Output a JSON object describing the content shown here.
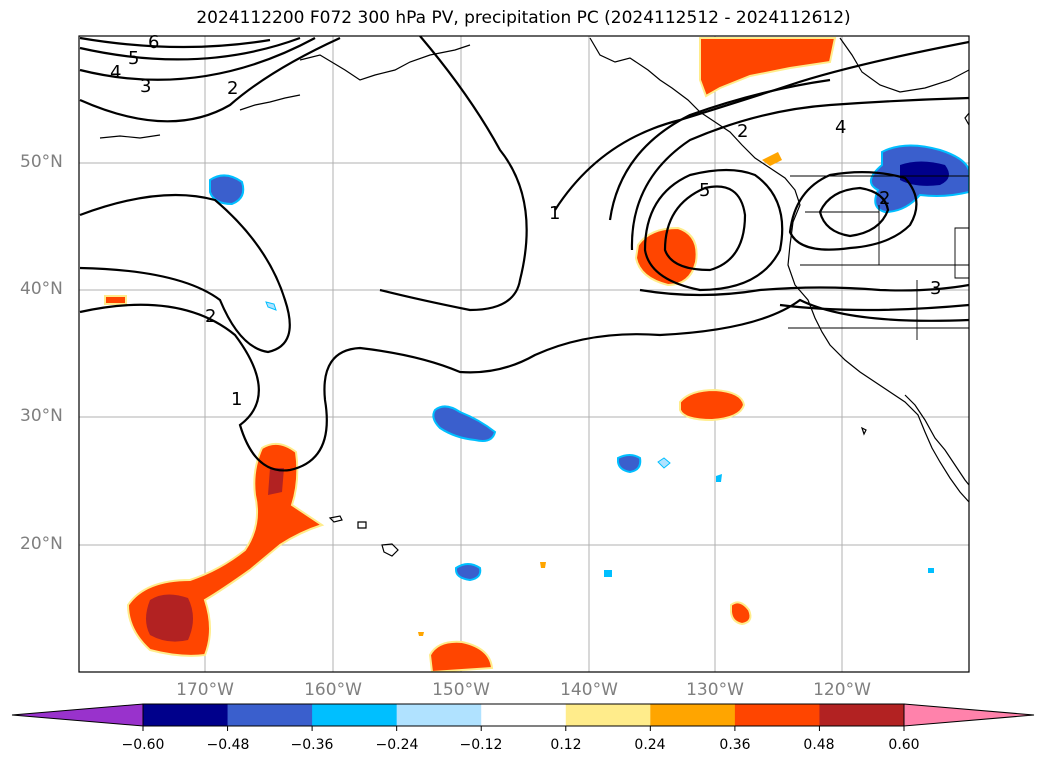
{
  "title": "2024112200 F072 300 hPa PV, precipitation PC (2024112512 - 2024112612)",
  "map": {
    "lat_labels": [
      "50°N",
      "40°N",
      "30°N",
      "20°N"
    ],
    "lon_labels": [
      "170°W",
      "160°W",
      "150°W",
      "140°W",
      "130°W",
      "120°W"
    ],
    "contour_labels": [
      "6",
      "5",
      "4",
      "3",
      "2",
      "1",
      "2",
      "1",
      "5",
      "4",
      "2",
      "2",
      "3"
    ]
  },
  "colorbar": {
    "ticks": [
      "−0.60",
      "−0.48",
      "−0.36",
      "−0.24",
      "−0.12",
      "0.12",
      "0.24",
      "0.36",
      "0.48",
      "0.60"
    ],
    "colors": [
      "#9932CC",
      "#00008B",
      "#3A5FCD",
      "#00BFFF",
      "#B0E2FF",
      "#FFFFFF",
      "#FFEC8B",
      "#FFA500",
      "#FF4500",
      "#B22222",
      "#FF82AB"
    ]
  }
}
